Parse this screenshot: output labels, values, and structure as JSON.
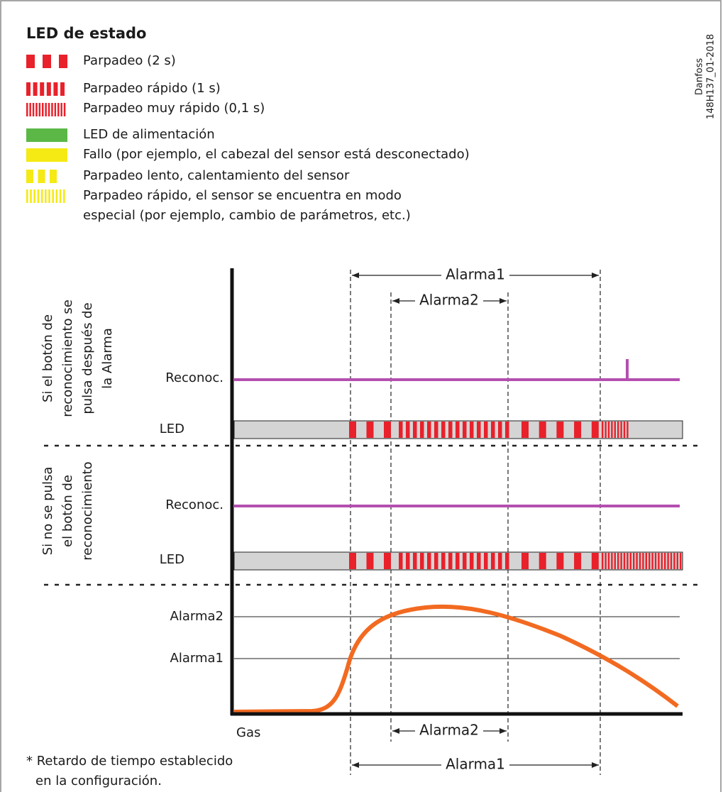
{
  "legend": {
    "title": "LED de estado",
    "items": [
      [
        "Parpadeo (2 s)"
      ],
      [
        "Parpadeo rápido (1 s)"
      ],
      [
        "Parpadeo muy rápido (0,1 s)"
      ],
      [
        "LED de alimentación"
      ],
      [
        "Fallo (por ejemplo, el cabezal del sensor está desconectado)"
      ],
      [
        "Parpadeo lento, calentamiento del sensor"
      ],
      [
        "Parpadeo rápido, el sensor se encuentra en modo",
        "especial (por ejemplo, cambio de parámetros, etc.)"
      ]
    ]
  },
  "code": [
    "Danfoss",
    "148H137_01-2018"
  ],
  "scenarios": [
    {
      "label": [
        "Si el botón de",
        "reconocimiento se",
        "pulsa después de",
        "la Alarma"
      ],
      "ack": "Reconoc.",
      "led": "LED"
    },
    {
      "label": [
        "Si no se pulsa",
        "el botón de",
        "reconocimiento"
      ],
      "ack": "Reconoc.",
      "led": "LED"
    }
  ],
  "gas": {
    "label": "Gas",
    "levels": [
      "Alarma2",
      "Alarma1"
    ]
  },
  "spans": {
    "top": [
      "Alarma1",
      "Alarma2"
    ],
    "bottom": [
      "Alarma2",
      "Alarma1"
    ]
  },
  "footnote": [
    "* Retardo de tiempo establecido",
    "en la configuración."
  ]
}
